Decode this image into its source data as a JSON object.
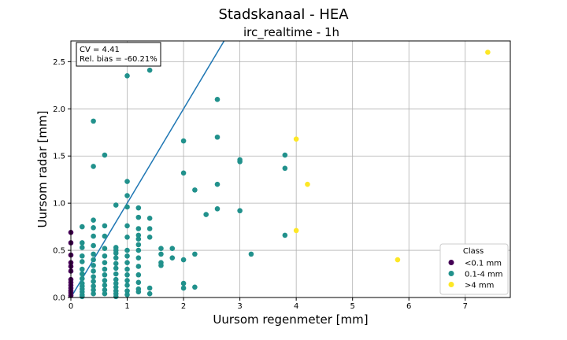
{
  "chart_data": {
    "type": "scatter",
    "title": "Stadskanaal - HEA",
    "subtitle": "irc_realtime - 1h",
    "xlabel": "Uursom regenmeter [mm]",
    "ylabel": "Uursom radar [mm]",
    "xlim": [
      0,
      7.8
    ],
    "ylim": [
      0,
      2.72
    ],
    "xticks": [
      "0",
      "1",
      "2",
      "3",
      "4",
      "5",
      "6",
      "7"
    ],
    "yticks": [
      "0.0",
      "0.5",
      "1.0",
      "1.5",
      "2.0",
      "2.5"
    ],
    "grid": true,
    "stats_box": {
      "cv": "CV = 4.41",
      "bias": "Rel. bias = -60.21%"
    },
    "reference_line": {
      "from": [
        0,
        0
      ],
      "to": [
        2.72,
        2.72
      ],
      "color": "#1f77b4"
    },
    "legend": {
      "title": "Class",
      "position": "lower-right",
      "entries": [
        {
          "label": "<0.1 mm",
          "color": "#440154"
        },
        {
          "label": "0.1-4 mm",
          "color": "#21918c"
        },
        {
          "label": ">4 mm",
          "color": "#fde725"
        }
      ]
    },
    "series": [
      {
        "name": "<0.1 mm",
        "color": "#440154",
        "points": [
          [
            0,
            0.69
          ],
          [
            0,
            0.58
          ],
          [
            0,
            0.45
          ],
          [
            0,
            0.37
          ],
          [
            0,
            0.33
          ],
          [
            0,
            0.28
          ],
          [
            0,
            0.19
          ],
          [
            0,
            0.16
          ],
          [
            0,
            0.13
          ],
          [
            0,
            0.1
          ],
          [
            0,
            0.07
          ],
          [
            0,
            0.05
          ],
          [
            0,
            0.02
          ]
        ]
      },
      {
        "name": "0.1-4 mm",
        "color": "#21918c",
        "points": [
          [
            0.2,
            0.75
          ],
          [
            0.2,
            0.58
          ],
          [
            0.2,
            0.53
          ],
          [
            0.2,
            0.44
          ],
          [
            0.2,
            0.38
          ],
          [
            0.2,
            0.3
          ],
          [
            0.2,
            0.25
          ],
          [
            0.2,
            0.2
          ],
          [
            0.2,
            0.15
          ],
          [
            0.2,
            0.12
          ],
          [
            0.2,
            0.09
          ],
          [
            0.2,
            0.06
          ],
          [
            0.2,
            0.03
          ],
          [
            0.2,
            0.01
          ],
          [
            0.4,
            1.87
          ],
          [
            0.4,
            1.39
          ],
          [
            0.4,
            0.82
          ],
          [
            0.4,
            0.74
          ],
          [
            0.4,
            0.65
          ],
          [
            0.4,
            0.55
          ],
          [
            0.4,
            0.46
          ],
          [
            0.4,
            0.4
          ],
          [
            0.4,
            0.34
          ],
          [
            0.4,
            0.28
          ],
          [
            0.4,
            0.22
          ],
          [
            0.4,
            0.17
          ],
          [
            0.4,
            0.12
          ],
          [
            0.4,
            0.08
          ],
          [
            0.4,
            0.04
          ],
          [
            0.6,
            1.51
          ],
          [
            0.6,
            0.76
          ],
          [
            0.6,
            0.65
          ],
          [
            0.6,
            0.52
          ],
          [
            0.6,
            0.44
          ],
          [
            0.6,
            0.37
          ],
          [
            0.6,
            0.3
          ],
          [
            0.6,
            0.24
          ],
          [
            0.6,
            0.18
          ],
          [
            0.6,
            0.13
          ],
          [
            0.6,
            0.08
          ],
          [
            0.6,
            0.04
          ],
          [
            0.8,
            0.98
          ],
          [
            0.8,
            0.53
          ],
          [
            0.8,
            0.5
          ],
          [
            0.8,
            0.47
          ],
          [
            0.8,
            0.42
          ],
          [
            0.8,
            0.36
          ],
          [
            0.8,
            0.31
          ],
          [
            0.8,
            0.25
          ],
          [
            0.8,
            0.19
          ],
          [
            0.8,
            0.15
          ],
          [
            0.8,
            0.11
          ],
          [
            0.8,
            0.07
          ],
          [
            0.8,
            0.04
          ],
          [
            0.8,
            0.01
          ],
          [
            1.0,
            2.35
          ],
          [
            1.0,
            1.23
          ],
          [
            1.0,
            1.08
          ],
          [
            1.0,
            0.96
          ],
          [
            1.0,
            0.76
          ],
          [
            1.0,
            0.64
          ],
          [
            1.0,
            0.5
          ],
          [
            1.0,
            0.44
          ],
          [
            1.0,
            0.37
          ],
          [
            1.0,
            0.3
          ],
          [
            1.0,
            0.24
          ],
          [
            1.0,
            0.18
          ],
          [
            1.0,
            0.13
          ],
          [
            1.0,
            0.07
          ],
          [
            1.0,
            0.03
          ],
          [
            1.2,
            0.95
          ],
          [
            1.2,
            0.85
          ],
          [
            1.2,
            0.73
          ],
          [
            1.2,
            0.66
          ],
          [
            1.2,
            0.62
          ],
          [
            1.2,
            0.56
          ],
          [
            1.2,
            0.5
          ],
          [
            1.2,
            0.42
          ],
          [
            1.2,
            0.33
          ],
          [
            1.2,
            0.24
          ],
          [
            1.2,
            0.16
          ],
          [
            1.2,
            0.09
          ],
          [
            1.2,
            0.06
          ],
          [
            1.4,
            2.41
          ],
          [
            1.4,
            0.84
          ],
          [
            1.4,
            0.73
          ],
          [
            1.4,
            0.64
          ],
          [
            1.4,
            0.1
          ],
          [
            1.4,
            0.04
          ],
          [
            1.6,
            0.52
          ],
          [
            1.6,
            0.46
          ],
          [
            1.6,
            0.37
          ],
          [
            1.6,
            0.34
          ],
          [
            1.8,
            0.52
          ],
          [
            1.8,
            0.42
          ],
          [
            2.0,
            1.66
          ],
          [
            2.0,
            1.32
          ],
          [
            2.0,
            0.4
          ],
          [
            2.0,
            0.15
          ],
          [
            2.0,
            0.1
          ],
          [
            2.2,
            1.14
          ],
          [
            2.2,
            0.46
          ],
          [
            2.2,
            0.11
          ],
          [
            2.4,
            0.88
          ],
          [
            2.6,
            2.1
          ],
          [
            2.6,
            1.7
          ],
          [
            2.6,
            1.2
          ],
          [
            2.6,
            0.94
          ],
          [
            3.0,
            1.46
          ],
          [
            3.0,
            1.44
          ],
          [
            3.0,
            0.92
          ],
          [
            3.2,
            0.46
          ],
          [
            3.8,
            1.51
          ],
          [
            3.8,
            1.37
          ],
          [
            3.8,
            0.66
          ]
        ]
      },
      {
        "name": ">4 mm",
        "color": "#fde725",
        "points": [
          [
            4.0,
            1.68
          ],
          [
            4.2,
            1.2
          ],
          [
            4.0,
            0.71
          ],
          [
            5.8,
            0.4
          ],
          [
            7.4,
            2.6
          ]
        ]
      }
    ]
  }
}
